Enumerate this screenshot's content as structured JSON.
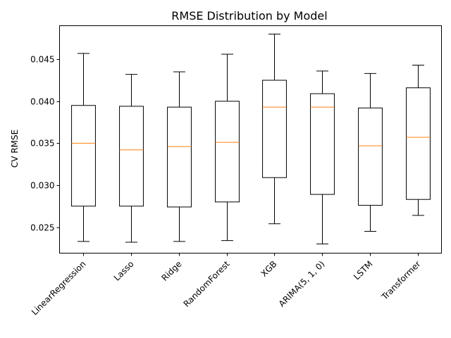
{
  "chart_data": {
    "type": "box",
    "title": "RMSE Distribution by Model",
    "xlabel": "",
    "ylabel": "CV RMSE",
    "ylim": [
      0.0219,
      0.049
    ],
    "yticks": [
      "0.025",
      "0.030",
      "0.035",
      "0.040",
      "0.045"
    ],
    "ytick_values": [
      0.025,
      0.03,
      0.035,
      0.04,
      0.045
    ],
    "grid": false,
    "median_color": "#ff7f0e",
    "box_color": "#000000",
    "categories": [
      "LinearRegression",
      "Lasso",
      "Ridge",
      "RandomForest",
      "XGB",
      "ARIMA(5, 1, 0)",
      "LSTM",
      "Transformer"
    ],
    "boxes": [
      {
        "whislo": 0.0233,
        "q1": 0.0275,
        "med": 0.035,
        "q3": 0.0395,
        "whishi": 0.0457
      },
      {
        "whislo": 0.0232,
        "q1": 0.0275,
        "med": 0.0342,
        "q3": 0.0394,
        "whishi": 0.0432
      },
      {
        "whislo": 0.0233,
        "q1": 0.0274,
        "med": 0.0346,
        "q3": 0.0393,
        "whishi": 0.0435
      },
      {
        "whislo": 0.0234,
        "q1": 0.028,
        "med": 0.0351,
        "q3": 0.04,
        "whishi": 0.0456
      },
      {
        "whislo": 0.0254,
        "q1": 0.0309,
        "med": 0.0393,
        "q3": 0.0425,
        "whishi": 0.048
      },
      {
        "whislo": 0.023,
        "q1": 0.0289,
        "med": 0.0393,
        "q3": 0.0409,
        "whishi": 0.0436
      },
      {
        "whislo": 0.0245,
        "q1": 0.0276,
        "med": 0.0347,
        "q3": 0.0392,
        "whishi": 0.0433
      },
      {
        "whislo": 0.0264,
        "q1": 0.0283,
        "med": 0.0357,
        "q3": 0.0416,
        "whishi": 0.0443
      }
    ]
  }
}
